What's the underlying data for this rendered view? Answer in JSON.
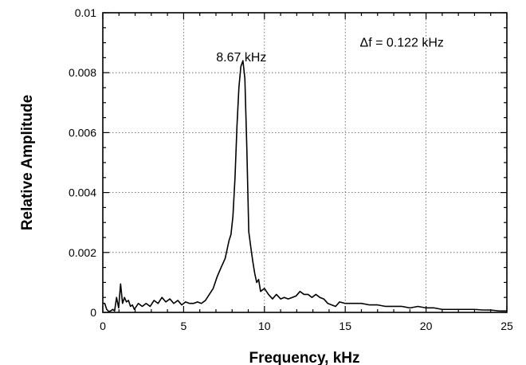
{
  "chart_data": {
    "type": "line",
    "title": "",
    "xlabel": "Frequency, kHz",
    "ylabel": "Relative Amplitude",
    "xlim": [
      0,
      25
    ],
    "ylim": [
      0,
      0.01
    ],
    "grid": true,
    "x_ticks": [
      0,
      5,
      10,
      15,
      20,
      25
    ],
    "x_tick_labels": [
      "0",
      "5",
      "10",
      "15",
      "20",
      "25"
    ],
    "y_ticks": [
      0,
      0.002,
      0.004,
      0.006,
      0.008,
      0.01
    ],
    "y_tick_labels": [
      "0",
      "0.002",
      "0.004",
      "0.006",
      "0.008",
      "0.01"
    ],
    "annotations": [
      {
        "text": "8.67 kHz",
        "x": 8.67,
        "y": 0.0084
      },
      {
        "text": "Δf = 0.122 kHz",
        "x": 18.6,
        "y": 0.0089
      }
    ],
    "series": [
      {
        "x": [
          0,
          0.12,
          0.24,
          0.37,
          0.49,
          0.61,
          0.73,
          0.85,
          0.98,
          1.1,
          1.22,
          1.34,
          1.46,
          1.59,
          1.71,
          1.83,
          1.95,
          2.2,
          2.44,
          2.68,
          2.93,
          3.17,
          3.42,
          3.66,
          3.9,
          4.15,
          4.39,
          4.64,
          4.88,
          5.12,
          5.37,
          5.61,
          5.86,
          6.1,
          6.35,
          6.59,
          6.83,
          7.08,
          7.32,
          7.57,
          7.81,
          7.93,
          8.05,
          8.18,
          8.3,
          8.42,
          8.54,
          8.67,
          8.79,
          8.91,
          9.03,
          9.15,
          9.28,
          9.4,
          9.52,
          9.64,
          9.76,
          10.0,
          10.25,
          10.5,
          10.74,
          11.0,
          11.23,
          11.47,
          11.72,
          11.96,
          12.2,
          12.45,
          12.7,
          12.94,
          13.18,
          13.43,
          13.67,
          13.92,
          14.16,
          14.4,
          14.65,
          15.0,
          15.5,
          16.0,
          16.5,
          17.0,
          17.5,
          18.0,
          18.5,
          19.0,
          19.5,
          20.0,
          20.5,
          21.0,
          21.5,
          22.0,
          22.5,
          23.0,
          23.5,
          24.0,
          24.5,
          25.0
        ],
        "y": [
          0.0003,
          0.0003,
          0.0001,
          3e-05,
          5e-05,
          0.0001,
          5e-05,
          0.0005,
          0.00015,
          0.00095,
          0.0003,
          0.0005,
          0.00035,
          0.0004,
          0.0002,
          0.00025,
          0.0001,
          0.0003,
          0.0002,
          0.0003,
          0.0002,
          0.0004,
          0.0003,
          0.0005,
          0.00035,
          0.00045,
          0.0003,
          0.0004,
          0.00025,
          0.00035,
          0.0003,
          0.0003,
          0.00035,
          0.0003,
          0.0004,
          0.0006,
          0.0008,
          0.0012,
          0.0015,
          0.0018,
          0.0024,
          0.0026,
          0.0032,
          0.0045,
          0.0062,
          0.0075,
          0.0082,
          0.0084,
          0.0078,
          0.0055,
          0.0027,
          0.0022,
          0.0017,
          0.0013,
          0.001,
          0.0011,
          0.0007,
          0.0008,
          0.0006,
          0.00045,
          0.0006,
          0.00045,
          0.0005,
          0.00045,
          0.0005,
          0.00055,
          0.0007,
          0.0006,
          0.0006,
          0.0005,
          0.0006,
          0.0005,
          0.00045,
          0.0003,
          0.00025,
          0.0002,
          0.00035,
          0.0003,
          0.0003,
          0.0003,
          0.00025,
          0.00025,
          0.0002,
          0.0002,
          0.0002,
          0.00015,
          0.0002,
          0.00015,
          0.00015,
          0.0001,
          0.0001,
          0.0001,
          0.0001,
          0.0001,
          8e-05,
          8e-05,
          5e-05,
          5e-05
        ]
      }
    ]
  }
}
